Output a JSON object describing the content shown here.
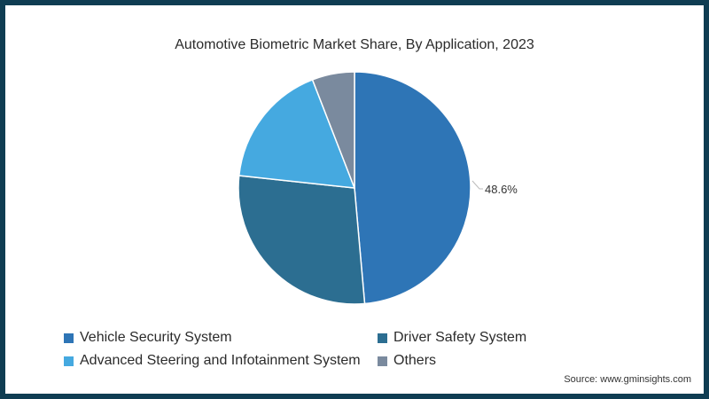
{
  "chart_data": {
    "type": "pie",
    "title": "Automotive Biometric Market Share, By Application, 2023",
    "categories": [
      "Vehicle Security System",
      "Driver Safety System",
      "Advanced Steering and Infotainment System",
      "Others"
    ],
    "values": [
      48.6,
      28.1,
      17.4,
      5.9
    ],
    "colors": [
      "#2e75b6",
      "#2c6e91",
      "#45a9e0",
      "#7a8a9e"
    ],
    "data_labels": [
      {
        "category": "Vehicle Security System",
        "text": "48.6%"
      }
    ],
    "start_angle": "12 o'clock",
    "direction": "clockwise",
    "legend_position": "bottom"
  },
  "title": "Automotive Biometric Market Share, By Application, 2023",
  "legend": {
    "items": [
      {
        "label": "Vehicle Security System",
        "color": "#2e75b6"
      },
      {
        "label": "Driver Safety System",
        "color": "#2c6e91"
      },
      {
        "label": "Advanced Steering and Infotainment System",
        "color": "#45a9e0"
      },
      {
        "label": "Others",
        "color": "#7a8a9e"
      }
    ]
  },
  "data_label": "48.6%",
  "source": "Source: www.gminsights.com"
}
